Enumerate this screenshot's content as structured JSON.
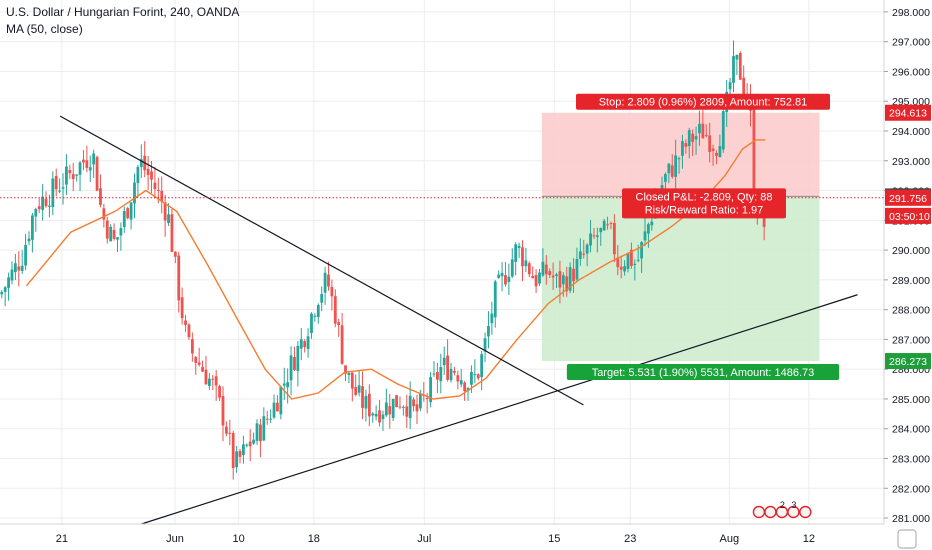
{
  "header": {
    "symbol_line": "U.S. Dollar / Hungarian Forint, 240, OANDA",
    "indicator_line": "MA (50, close)"
  },
  "chart_data": {
    "type": "candlestick",
    "ylim": [
      280.8,
      298.4
    ],
    "yticks": [
      281,
      282,
      283,
      284,
      285,
      286,
      287,
      288,
      289,
      290,
      291,
      292,
      293,
      294,
      295,
      296,
      297,
      298
    ],
    "xticks": [
      {
        "label": "21",
        "t": 0.07
      },
      {
        "label": "Jun",
        "t": 0.198
      },
      {
        "label": "10",
        "t": 0.27
      },
      {
        "label": "18",
        "t": 0.355
      },
      {
        "label": "Jul",
        "t": 0.48
      },
      {
        "label": "15",
        "t": 0.627
      },
      {
        "label": "23",
        "t": 0.713
      },
      {
        "label": "Aug",
        "t": 0.825
      },
      {
        "label": "12",
        "t": 0.915
      }
    ],
    "price_path": [
      [
        0.0,
        288.5
      ],
      [
        0.025,
        289.8
      ],
      [
        0.04,
        291.5
      ],
      [
        0.06,
        292.0
      ],
      [
        0.085,
        292.7
      ],
      [
        0.105,
        293.3
      ],
      [
        0.115,
        291.2
      ],
      [
        0.13,
        290.2
      ],
      [
        0.145,
        291.5
      ],
      [
        0.158,
        293.0
      ],
      [
        0.172,
        292.3
      ],
      [
        0.19,
        291.2
      ],
      [
        0.2,
        289.0
      ],
      [
        0.212,
        286.8
      ],
      [
        0.225,
        286.2
      ],
      [
        0.24,
        285.5
      ],
      [
        0.255,
        284.2
      ],
      [
        0.265,
        282.7
      ],
      [
        0.28,
        283.4
      ],
      [
        0.3,
        284.2
      ],
      [
        0.315,
        285.1
      ],
      [
        0.33,
        286.2
      ],
      [
        0.345,
        287.2
      ],
      [
        0.36,
        288.5
      ],
      [
        0.37,
        289.0
      ],
      [
        0.38,
        287.8
      ],
      [
        0.39,
        286.0
      ],
      [
        0.4,
        285.3
      ],
      [
        0.412,
        284.8
      ],
      [
        0.425,
        284.6
      ],
      [
        0.44,
        284.8
      ],
      [
        0.455,
        285.0
      ],
      [
        0.47,
        284.5
      ],
      [
        0.485,
        285.2
      ],
      [
        0.5,
        286.1
      ],
      [
        0.515,
        286.0
      ],
      [
        0.53,
        285.5
      ],
      [
        0.54,
        285.8
      ],
      [
        0.55,
        287.0
      ],
      [
        0.56,
        288.5
      ],
      [
        0.575,
        289.4
      ],
      [
        0.585,
        290.1
      ],
      [
        0.595,
        289.6
      ],
      [
        0.605,
        289.0
      ],
      [
        0.62,
        289.3
      ],
      [
        0.63,
        288.9
      ],
      [
        0.645,
        289.1
      ],
      [
        0.66,
        289.8
      ],
      [
        0.675,
        290.5
      ],
      [
        0.69,
        290.6
      ],
      [
        0.7,
        289.5
      ],
      [
        0.71,
        289.8
      ],
      [
        0.72,
        289.5
      ],
      [
        0.735,
        291.0
      ],
      [
        0.75,
        292.3
      ],
      [
        0.765,
        293.0
      ],
      [
        0.78,
        293.7
      ],
      [
        0.795,
        294.0
      ],
      [
        0.81,
        293.5
      ],
      [
        0.82,
        294.5
      ],
      [
        0.828,
        296.0
      ],
      [
        0.835,
        296.3
      ],
      [
        0.842,
        295.3
      ],
      [
        0.848,
        295.0
      ],
      [
        0.853,
        292.0
      ],
      [
        0.86,
        291.0
      ],
      [
        0.866,
        290.8
      ]
    ],
    "ma_series": {
      "name": "MA (50, close)",
      "color": "#f57c2f",
      "path": [
        [
          0.03,
          288.8
        ],
        [
          0.08,
          290.6
        ],
        [
          0.13,
          291.3
        ],
        [
          0.165,
          292.0
        ],
        [
          0.2,
          291.3
        ],
        [
          0.235,
          289.5
        ],
        [
          0.27,
          287.6
        ],
        [
          0.3,
          286.0
        ],
        [
          0.33,
          285.0
        ],
        [
          0.36,
          285.2
        ],
        [
          0.39,
          285.9
        ],
        [
          0.42,
          286.0
        ],
        [
          0.45,
          285.5
        ],
        [
          0.49,
          285.0
        ],
        [
          0.52,
          285.1
        ],
        [
          0.55,
          285.7
        ],
        [
          0.585,
          287.0
        ],
        [
          0.62,
          288.2
        ],
        [
          0.655,
          289.0
        ],
        [
          0.69,
          289.6
        ],
        [
          0.725,
          290.1
        ],
        [
          0.76,
          290.8
        ],
        [
          0.79,
          291.5
        ],
        [
          0.82,
          292.5
        ],
        [
          0.84,
          293.4
        ],
        [
          0.855,
          293.7
        ],
        [
          0.866,
          293.7
        ]
      ]
    },
    "trendlines": [
      {
        "name": "descending-resistance",
        "from": [
          0.068,
          294.5
        ],
        "to": [
          0.66,
          284.8
        ],
        "color": "#131722"
      },
      {
        "name": "ascending-support",
        "from": [
          0.16,
          280.8
        ],
        "to": [
          0.97,
          288.5
        ],
        "color": "#131722"
      }
    ],
    "position": {
      "entry": 291.804,
      "stop": 294.613,
      "target": 286.273,
      "t_start": 0.613,
      "t_end": 0.927,
      "stop_label": "Stop: 2.809 (0.96%) 2809, Amount: 752.81",
      "pnl_label": "Closed P&L: -2.809, Qty: 88",
      "rr_label": "Risk/Reward Ratio: 1.97",
      "target_label": "Target: 5.531 (1.90%) 5531, Amount: 1486.73"
    },
    "price_markers": [
      {
        "label": "294.613",
        "value": 294.613,
        "color": "#e5252a"
      },
      {
        "label": "291.804",
        "value": 291.804,
        "color": "#4a4a4a"
      },
      {
        "label": "291.756",
        "value": 291.756,
        "color": "#e5252a"
      },
      {
        "label": "03:50:10",
        "value": 291.15,
        "color": "#e5252a"
      },
      {
        "label": "286.273",
        "value": 286.273,
        "color": "#1f9d3a"
      }
    ],
    "current_price_line": 291.756,
    "colors": {
      "up": "#26a69a",
      "down": "#ef5350",
      "stop_fill": "#fbc9c9",
      "target_fill": "#cdebcd",
      "stop_label_bg": "#e5252a",
      "target_label_bg": "#18a33a",
      "axis_text": "#131722",
      "grid": "#ededf0"
    }
  }
}
